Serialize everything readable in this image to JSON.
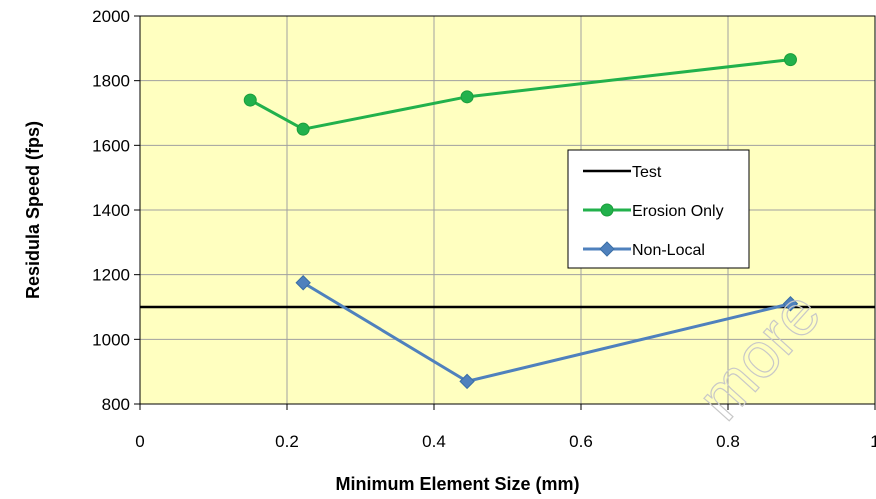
{
  "chart_data": {
    "type": "line",
    "title": "",
    "xlabel": "Minimum Element Size (mm)",
    "ylabel": "Residula Speed (fps)",
    "xlim": [
      0,
      1
    ],
    "ylim": [
      800,
      2000
    ],
    "x_ticks": [
      "0",
      "0.2",
      "0.4",
      "0.6",
      "0.8",
      "1"
    ],
    "y_ticks": [
      "800",
      "1000",
      "1200",
      "1400",
      "1600",
      "1800",
      "2000"
    ],
    "grid": true,
    "plot_background": "#ffffc0",
    "legend_position": "right",
    "series": [
      {
        "name": "Test",
        "kind": "reference",
        "color": "#000000",
        "marker": "none",
        "x": [
          0,
          1
        ],
        "y": [
          1100,
          1100
        ]
      },
      {
        "name": "Erosion Only",
        "color": "#22b14c",
        "marker": "circle",
        "x": [
          0.15,
          0.222,
          0.445,
          0.885
        ],
        "y": [
          1740,
          1650,
          1750,
          1865
        ]
      },
      {
        "name": "Non-Local",
        "color": "#4f81bd",
        "marker": "diamond",
        "x": [
          0.222,
          0.445,
          0.885
        ],
        "y": [
          1175,
          870,
          1110
        ]
      }
    ]
  },
  "watermark": {
    "text": "more",
    "color": "#c8c8c8"
  }
}
